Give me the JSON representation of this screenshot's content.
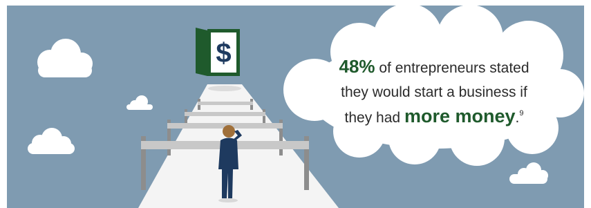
{
  "door": {
    "symbol": "$"
  },
  "callout": {
    "stat": "48%",
    "line1_rest": "of entrepreneurs stated",
    "line2": "they would start a business if",
    "line3_start": "they had",
    "emphasis": "more money",
    "period": ".",
    "footnote": "9"
  }
}
